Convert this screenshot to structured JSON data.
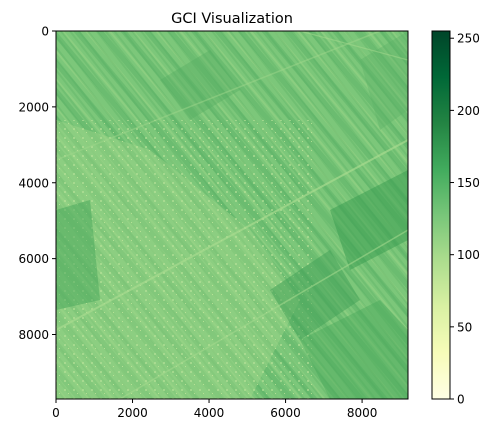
{
  "chart_data": {
    "type": "heatmap",
    "title": "GCI Visualization",
    "xlabel": "",
    "ylabel": "",
    "x_range": [
      0,
      9200
    ],
    "y_range": [
      9700,
      0
    ],
    "x_ticks": [
      0,
      2000,
      4000,
      6000,
      8000
    ],
    "y_ticks": [
      0,
      2000,
      4000,
      6000,
      8000
    ],
    "x_tick_labels": [
      "0",
      "2000",
      "4000",
      "6000",
      "8000"
    ],
    "y_tick_labels": [
      "0",
      "2000",
      "4000",
      "6000",
      "8000"
    ],
    "colorbar": {
      "colormap": "YlGn",
      "range": [
        0,
        255
      ],
      "ticks": [
        0,
        50,
        100,
        150,
        200,
        250
      ],
      "tick_labels": [
        "0",
        "50",
        "100",
        "150",
        "200",
        "250"
      ],
      "colors": [
        "#ffffe5",
        "#f7fcb9",
        "#d9f0a3",
        "#addd8e",
        "#78c679",
        "#41ab5d",
        "#238443",
        "#006837",
        "#004529"
      ]
    },
    "typical_value": 145,
    "image_colors": {
      "base": "#7cc77a",
      "darker": "#47a55a",
      "lighter": "#9fd68a",
      "bright": "#c5e69a"
    }
  }
}
